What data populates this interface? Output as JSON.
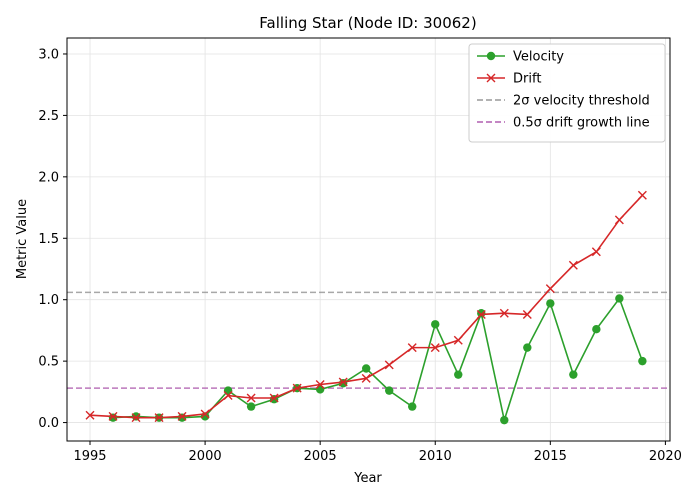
{
  "chart_data": {
    "type": "line",
    "title": "Falling Star (Node ID: 30062)",
    "xlabel": "Year",
    "ylabel": "Metric Value",
    "xlim": [
      1994,
      2020.2
    ],
    "ylim": [
      -0.15,
      3.13
    ],
    "xticks": [
      1995,
      2000,
      2005,
      2010,
      2015,
      2020
    ],
    "yticks": [
      0.0,
      0.5,
      1.0,
      1.5,
      2.0,
      2.5,
      3.0
    ],
    "grid": true,
    "legend_position": "top-right",
    "series": [
      {
        "name": "Velocity",
        "color": "#2ca02c",
        "marker": "circle",
        "x": [
          1996,
          1997,
          1998,
          1999,
          2000,
          2001,
          2002,
          2003,
          2004,
          2005,
          2006,
          2007,
          2008,
          2009,
          2010,
          2011,
          2012,
          2013,
          2014,
          2015,
          2016,
          2017,
          2018,
          2019
        ],
        "y": [
          0.04,
          0.05,
          0.04,
          0.04,
          0.05,
          0.26,
          0.13,
          0.19,
          0.28,
          0.27,
          0.32,
          0.44,
          0.26,
          0.13,
          0.8,
          0.39,
          0.89,
          0.02,
          0.61,
          0.97,
          0.39,
          0.76,
          1.01,
          0.5
        ]
      },
      {
        "name": "Drift",
        "color": "#d62728",
        "marker": "x",
        "x": [
          1995,
          1996,
          1997,
          1998,
          1999,
          2000,
          2001,
          2002,
          2003,
          2004,
          2005,
          2006,
          2007,
          2008,
          2009,
          2010,
          2011,
          2012,
          2013,
          2014,
          2015,
          2016,
          2017,
          2018,
          2019
        ],
        "y": [
          0.06,
          0.05,
          0.04,
          0.04,
          0.05,
          0.07,
          0.22,
          0.2,
          0.2,
          0.28,
          0.31,
          0.33,
          0.36,
          0.47,
          0.61,
          0.61,
          0.67,
          0.88,
          0.89,
          0.88,
          1.09,
          1.28,
          1.39,
          1.65,
          1.85
        ]
      }
    ],
    "reference_lines": [
      {
        "name": "2σ velocity threshold",
        "y": 1.06,
        "color": "#999999",
        "style": "dashed"
      },
      {
        "name": "0.5σ drift growth line",
        "y": 0.28,
        "color": "#b05fb0",
        "style": "dashed"
      }
    ]
  }
}
